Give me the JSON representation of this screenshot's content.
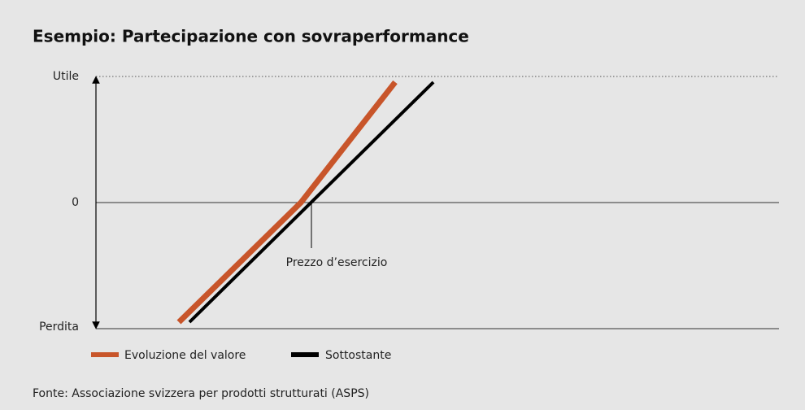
{
  "title": "Esempio: Partecipazione con sovraperformance",
  "axis_labels": {
    "top": "Utile",
    "zero": "0",
    "bottom": "Perdita"
  },
  "annotation": "Prezzo d’esercizio",
  "legend": [
    {
      "name": "Evoluzione del valore",
      "color": "#c8552a"
    },
    {
      "name": "Sottostante",
      "color": "#000000"
    }
  ],
  "source": "Fonte: Associazione svizzera per prodotti strutturati (ASPS)"
}
